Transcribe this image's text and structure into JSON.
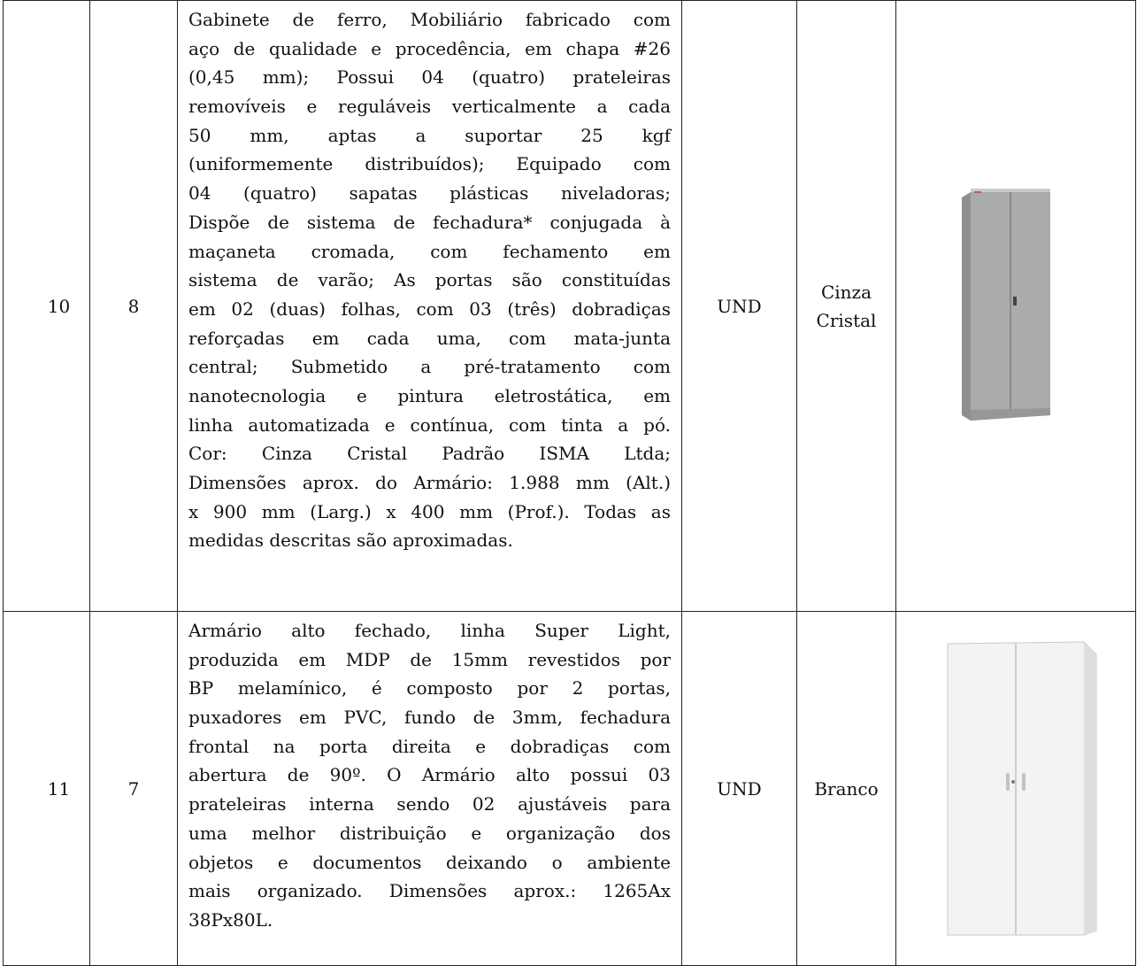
{
  "table": {
    "rows": [
      {
        "item": "10",
        "quantity": "8",
        "description": [
          "Gabinete de ferro, Mobiliário fabricado com",
          "aço de qualidade e procedência, em chapa #26",
          "(0,45 mm); Possui 04 (quatro) prateleiras",
          "removíveis e reguláveis verticalmente a cada",
          "50 mm, aptas a suportar 25 kgf",
          "(uniformemente distribuídos); Equipado com",
          "04 (quatro) sapatas plásticas niveladoras;",
          "Dispõe de sistema de fechadura* conjugada à",
          "maçaneta cromada, com fechamento em",
          "sistema de varão; As portas são constituídas",
          "em 02 (duas) folhas, com 03 (três) dobradiças",
          "reforçadas em cada uma, com mata-junta",
          "central; Submetido a pré-tratamento com",
          "nanotecnologia e pintura eletrostática, em",
          "linha automatizada e contínua, com tinta a pó.",
          "Cor: Cinza Cristal Padrão ISMA Ltda;",
          "Dimensões aprox. do Armário: 1.988 mm (Alt.)",
          "x 900 mm (Larg.) x 400 mm (Prof.). Todas as",
          "medidas descritas são aproximadas."
        ],
        "unit": "UND",
        "color": "Cinza Cristal"
      },
      {
        "item": "11",
        "quantity": "7",
        "description": [
          "Armário alto fechado, linha Super Light,",
          "produzida em MDP de 15mm revestidos por",
          "BP melamínico, é composto por 2 portas,",
          "puxadores em PVC, fundo de 3mm, fechadura",
          "frontal na porta direita e dobradiças com",
          "abertura de 90º. O Armário alto possui 03",
          "prateleiras interna sendo 02 ajustáveis para",
          "uma melhor distribuição e organização dos",
          "objetos e documentos deixando o ambiente",
          "mais organizado. Dimensões aprox.: 1265Ax",
          "38Px80L."
        ],
        "unit": "UND",
        "color": "Branco"
      }
    ]
  }
}
